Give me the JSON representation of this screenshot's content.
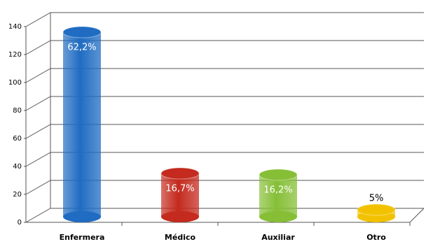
{
  "chart_data": {
    "type": "bar3d",
    "categories": [
      "Enfermera",
      "Médico",
      "Auxiliar",
      "Otro"
    ],
    "values": [
      138,
      37,
      36,
      11
    ],
    "percent_labels": [
      "62,2%",
      "16,7%",
      "16,2%",
      "5%"
    ],
    "colors": [
      "#1f6cc2",
      "#c42a1e",
      "#86bf36",
      "#f2c200"
    ],
    "ylim": [
      0,
      140
    ],
    "yticks": [
      0,
      20,
      40,
      60,
      80,
      100,
      120,
      140
    ],
    "grid": true
  }
}
